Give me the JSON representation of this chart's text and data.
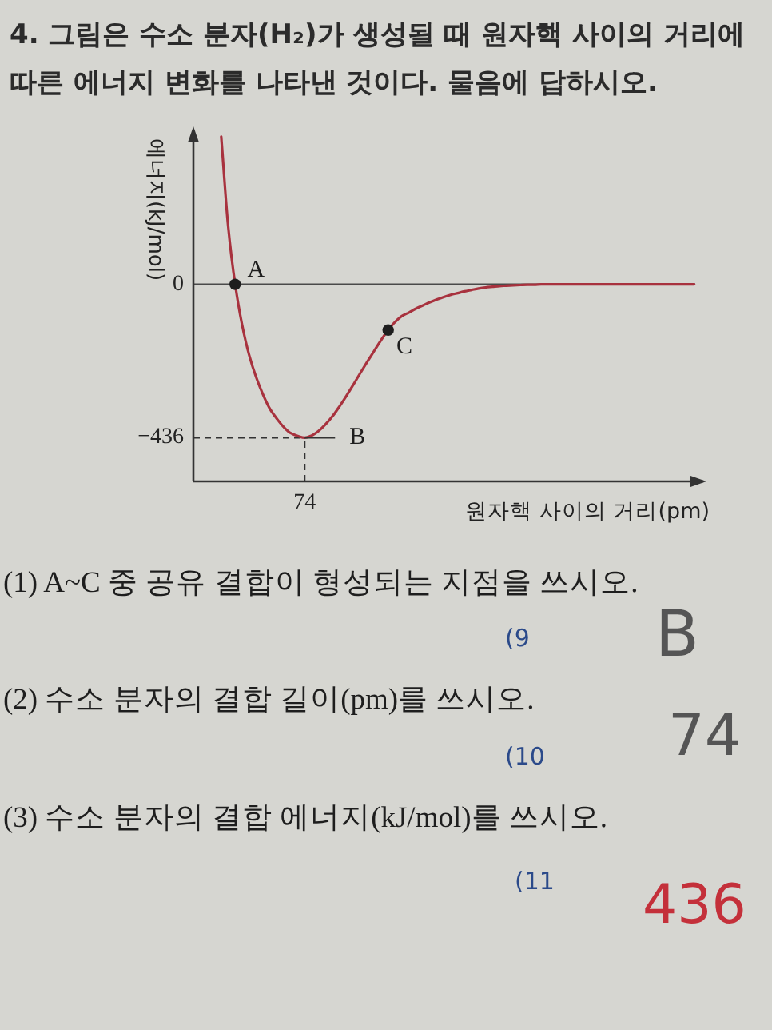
{
  "chart_data": {
    "type": "line",
    "title": "4. 그림은 수소 분자(H₂)가 생성될 때 원자핵 사이의 거리에 따른 에너지 변화를 나타낸 것이다. 물음에 답하시오.",
    "annotations": [
      {
        "text": "A",
        "y": 0
      },
      {
        "text": "B",
        "x": "74",
        "y": -436
      },
      "C",
      "(1) A~C 중 공유 결합이 형성되는 지점을 쓰시오.",
      "(9",
      "B",
      "(2) 수소 분자의 결합 길이(pm)를 쓰시오.",
      "(10",
      "74",
      "(3) 수소 분자의 결합 에너지(kJ/mol)를 쓰시오.",
      "(11",
      "436"
    ],
    "xlabel": "원자핵 사이의 거리(pm)",
    "ylabel": "에너지(kJ/mol)",
    "categories": [
      null,
      null,
      null,
      null,
      null,
      null,
      null,
      null,
      null,
      null,
      null,
      null,
      null,
      null,
      null,
      null,
      "74",
      null,
      null,
      null,
      null,
      null,
      null,
      null,
      null,
      null,
      null,
      null,
      null,
      null,
      null,
      null,
      null,
      null,
      null,
      null,
      null,
      null,
      null,
      null,
      null,
      null,
      null,
      null,
      null,
      null,
      null,
      null,
      null,
      null,
      null,
      null,
      null,
      null,
      null,
      null,
      null,
      null,
      null,
      null,
      null,
      null,
      null,
      null,
      null,
      null,
      null,
      null,
      null,
      null,
      null,
      null,
      null
    ],
    "ylim": [
      -560,
      440
    ],
    "yticks": [
      {
        "value": 0,
        "label": "0"
      },
      {
        "value": -436,
        "label": "−436"
      }
    ],
    "series": [
      {
        "color": "#a8323e",
        "values": [
          null,
          null,
          null,
          null,
          420,
          164,
          0,
          -115,
          -200,
          -263,
          -313,
          -354,
          -382,
          -406,
          -423,
          -431,
          -436,
          -430,
          -417,
          -398,
          -375,
          -347,
          -317,
          -285,
          -252,
          -220,
          -189,
          -158,
          -130,
          -107,
          -90,
          -80,
          -69,
          -60,
          -51,
          -43,
          -36,
          -30,
          -25,
          -20,
          -16,
          -12,
          -9,
          -7,
          -5,
          -4,
          -3,
          -2,
          -1,
          -1,
          0,
          0,
          0,
          0,
          0,
          0,
          0,
          0,
          0,
          0,
          0,
          0,
          0,
          0,
          0,
          0,
          0,
          0,
          0,
          0,
          0,
          0,
          0
        ]
      },
      {
        "type": "scatter",
        "color": "#1e1e1e",
        "marker": "circle",
        "values": [
          null,
          null,
          null,
          null,
          null,
          null,
          0,
          null,
          null,
          null,
          null,
          null,
          null,
          null,
          null,
          null,
          null,
          null,
          null,
          null,
          null,
          null,
          null,
          null,
          null,
          null,
          null,
          null,
          -130,
          null,
          null,
          null,
          null,
          null,
          null,
          null,
          null,
          null,
          null,
          null,
          null,
          null,
          null,
          null,
          null,
          null,
          null,
          null,
          null,
          null,
          null,
          null,
          null,
          null,
          null,
          null,
          null,
          null,
          null,
          null,
          null,
          null,
          null,
          null,
          null,
          null,
          null,
          null,
          null,
          null,
          null,
          null,
          null
        ]
      }
    ],
    "ref_lines": [
      {
        "axis": "y",
        "value": 0,
        "color": "#4a4a4a"
      },
      {
        "axis": "y",
        "value": -436,
        "color": "#333333",
        "line_style": "dashed"
      },
      {
        "axis": "x",
        "value": "74",
        "color": "#333333",
        "line_style": "dashed"
      }
    ]
  }
}
